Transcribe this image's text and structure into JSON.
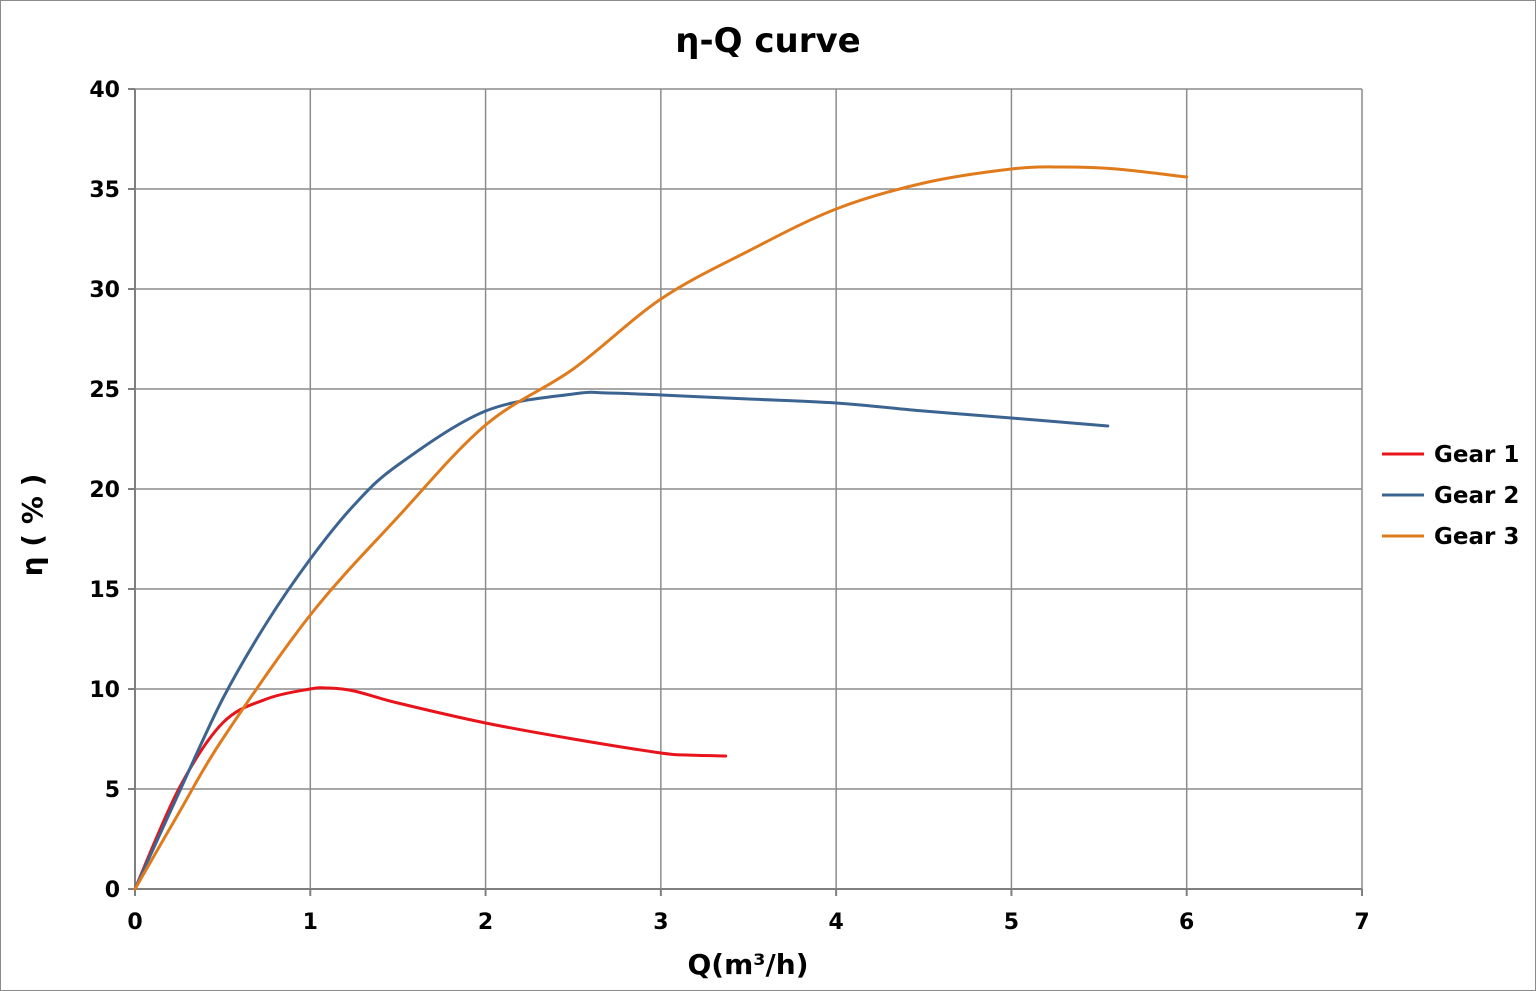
{
  "chart_data": {
    "type": "line",
    "title": "η-Q  curve",
    "xlabel": "Q(m³/h)",
    "ylabel": "η ( % )",
    "xlim": [
      0,
      7
    ],
    "ylim": [
      0,
      40
    ],
    "xticks": [
      0,
      1,
      2,
      3,
      4,
      5,
      6,
      7
    ],
    "yticks": [
      0,
      5,
      10,
      15,
      20,
      25,
      30,
      35,
      40
    ],
    "grid": true,
    "legend_position": "right",
    "series": [
      {
        "name": "Gear 1",
        "color": "#e8141b",
        "points": [
          [
            0,
            0
          ],
          [
            0.25,
            5.0
          ],
          [
            0.5,
            8.3
          ],
          [
            0.75,
            9.5
          ],
          [
            1.0,
            10.0
          ],
          [
            1.1,
            10.05
          ],
          [
            1.25,
            9.9
          ],
          [
            1.5,
            9.3
          ],
          [
            2.0,
            8.3
          ],
          [
            2.5,
            7.5
          ],
          [
            3.0,
            6.8
          ],
          [
            3.15,
            6.7
          ],
          [
            3.37,
            6.65
          ]
        ]
      },
      {
        "name": "Gear 2",
        "color": "#3c6491",
        "points": [
          [
            0,
            0
          ],
          [
            0.25,
            4.8
          ],
          [
            0.5,
            9.5
          ],
          [
            0.75,
            13.3
          ],
          [
            1.0,
            16.5
          ],
          [
            1.25,
            19.2
          ],
          [
            1.5,
            21.2
          ],
          [
            2.0,
            23.9
          ],
          [
            2.5,
            24.75
          ],
          [
            2.7,
            24.8
          ],
          [
            3.0,
            24.7
          ],
          [
            3.5,
            24.5
          ],
          [
            4.0,
            24.3
          ],
          [
            4.5,
            23.9
          ],
          [
            5.0,
            23.55
          ],
          [
            5.55,
            23.15
          ]
        ]
      },
      {
        "name": "Gear 3",
        "color": "#e07b1d",
        "points": [
          [
            0,
            0
          ],
          [
            0.25,
            3.8
          ],
          [
            0.5,
            7.5
          ],
          [
            1.0,
            13.7
          ],
          [
            1.5,
            18.6
          ],
          [
            2.0,
            23.2
          ],
          [
            2.5,
            26.0
          ],
          [
            3.0,
            29.5
          ],
          [
            3.5,
            31.9
          ],
          [
            4.0,
            34.0
          ],
          [
            4.5,
            35.3
          ],
          [
            5.0,
            36.0
          ],
          [
            5.3,
            36.1
          ],
          [
            5.6,
            36.0
          ],
          [
            6.0,
            35.6
          ]
        ]
      }
    ]
  }
}
